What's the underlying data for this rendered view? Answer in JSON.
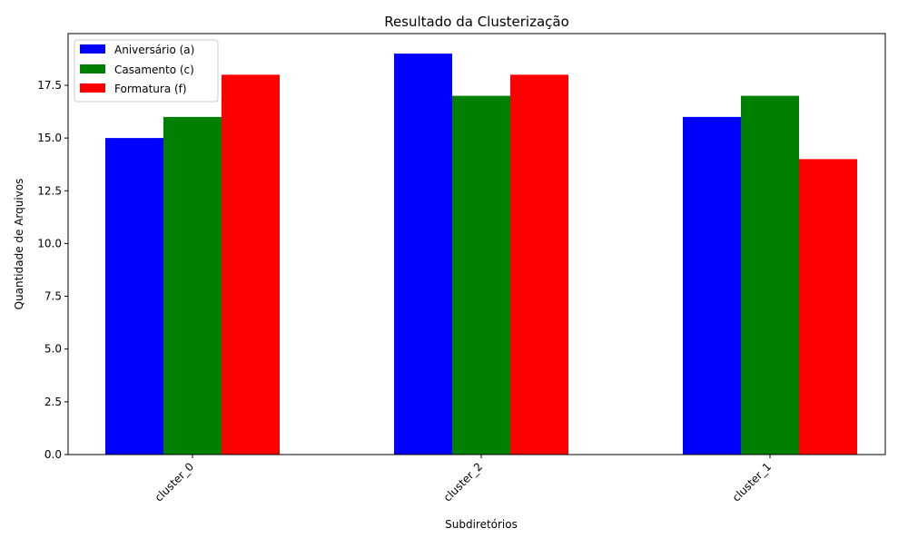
{
  "chart_data": {
    "type": "bar",
    "title": "Resultado da Clusterização",
    "xlabel": "Subdiretórios",
    "ylabel": "Quantidade de Arquivos",
    "categories": [
      "cluster_0",
      "cluster_2",
      "cluster_1"
    ],
    "series": [
      {
        "name": "Aniversário (a)",
        "color": "#0000ff",
        "values": [
          15,
          19,
          16
        ]
      },
      {
        "name": "Casamento (c)",
        "color": "#008000",
        "values": [
          16,
          17,
          17
        ]
      },
      {
        "name": "Formatura (f)",
        "color": "#ff0000",
        "values": [
          18,
          18,
          14
        ]
      }
    ],
    "ylim": [
      0,
      19.95
    ],
    "yticks": [
      0.0,
      2.5,
      5.0,
      7.5,
      10.0,
      12.5,
      15.0,
      17.5
    ],
    "ytick_labels": [
      "0.0",
      "2.5",
      "5.0",
      "7.5",
      "10.0",
      "12.5",
      "15.0",
      "17.5"
    ],
    "grid": false,
    "legend_position": "top-left",
    "xtick_rotation_deg": 45
  }
}
